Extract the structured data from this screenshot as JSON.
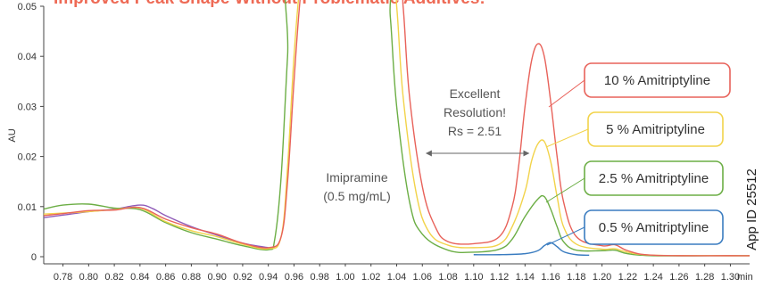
{
  "chart_data": {
    "type": "line",
    "title": "Improved Peak Shape Without Problematic Additives:",
    "xlabel": "min",
    "ylabel": "AU",
    "xlim": [
      0.765,
      1.315
    ],
    "ylim": [
      -0.0025,
      0.05
    ],
    "x_ticks": [
      0.78,
      0.8,
      0.82,
      0.84,
      0.86,
      0.88,
      0.9,
      0.92,
      0.94,
      0.96,
      0.98,
      1.0,
      1.02,
      1.04,
      1.06,
      1.08,
      1.1,
      1.12,
      1.14,
      1.16,
      1.18,
      1.2,
      1.22,
      1.24,
      1.26,
      1.28,
      1.3
    ],
    "x_tick_labels": [
      "0.78",
      "0.80",
      "0.82",
      "0.84",
      "0.86",
      "0.88",
      "0.90",
      "0.92",
      "0.94",
      "0.96",
      "0.98",
      "1.00",
      "1.02",
      "1.04",
      "1.06",
      "1.08",
      "1.10",
      "1.12",
      "1.14",
      "1.16",
      "1.18",
      "1.20",
      "1.22",
      "1.24",
      "1.26",
      "1.28",
      "1.30"
    ],
    "y_ticks": [
      0,
      0.01,
      0.02,
      0.03,
      0.04,
      0.05
    ],
    "y_tick_labels": [
      "0",
      "0.01",
      "0.02",
      "0.03",
      "0.04",
      "0.05"
    ],
    "grid": false,
    "series": [
      {
        "name": "10 % Amitriptyline",
        "color": "#e8625a",
        "x": [
          0.765,
          0.78,
          0.8,
          0.82,
          0.84,
          0.86,
          0.88,
          0.9,
          0.92,
          0.94,
          0.95,
          0.955,
          0.96,
          0.965,
          0.97,
          1.04,
          1.045,
          1.05,
          1.06,
          1.07,
          1.08,
          1.1,
          1.12,
          1.13,
          1.135,
          1.14,
          1.145,
          1.15,
          1.155,
          1.16,
          1.165,
          1.17,
          1.18,
          1.2,
          1.21,
          1.22,
          1.24,
          1.3,
          1.315
        ],
        "y": [
          0.0082,
          0.0086,
          0.0092,
          0.0093,
          0.0098,
          0.0075,
          0.0058,
          0.0045,
          0.0027,
          0.0018,
          0.004,
          0.015,
          0.035,
          0.052,
          0.06,
          0.06,
          0.05,
          0.032,
          0.014,
          0.006,
          0.003,
          0.0026,
          0.004,
          0.01,
          0.018,
          0.03,
          0.039,
          0.0425,
          0.04,
          0.031,
          0.02,
          0.011,
          0.004,
          0.0022,
          0.0024,
          0.0012,
          0.0003,
          0.0002,
          0.0002
        ]
      },
      {
        "name": "5 % Amitriptyline",
        "color": "#f2d34a",
        "x": [
          0.765,
          0.78,
          0.8,
          0.82,
          0.84,
          0.86,
          0.88,
          0.9,
          0.92,
          0.94,
          0.95,
          0.955,
          0.96,
          0.965,
          0.97,
          1.035,
          1.04,
          1.045,
          1.055,
          1.065,
          1.08,
          1.1,
          1.12,
          1.13,
          1.14,
          1.145,
          1.15,
          1.155,
          1.16,
          1.165,
          1.17,
          1.18,
          1.2,
          1.21,
          1.22,
          1.24,
          1.3,
          1.315
        ],
        "y": [
          0.0085,
          0.0087,
          0.009,
          0.0094,
          0.0097,
          0.007,
          0.0052,
          0.004,
          0.0025,
          0.0016,
          0.004,
          0.018,
          0.04,
          0.055,
          0.06,
          0.06,
          0.05,
          0.032,
          0.013,
          0.005,
          0.0023,
          0.0018,
          0.0025,
          0.006,
          0.013,
          0.019,
          0.0225,
          0.023,
          0.019,
          0.012,
          0.006,
          0.0025,
          0.0015,
          0.0016,
          0.0009,
          0.0003,
          0.0002,
          0.0002
        ]
      },
      {
        "name": "2.5 % Amitriptyline",
        "color": "#6cae45",
        "x": [
          0.765,
          0.78,
          0.8,
          0.82,
          0.84,
          0.86,
          0.88,
          0.9,
          0.92,
          0.94,
          0.945,
          0.95,
          0.955,
          0.96,
          1.03,
          1.035,
          1.04,
          1.05,
          1.06,
          1.08,
          1.1,
          1.12,
          1.13,
          1.14,
          1.15,
          1.155,
          1.16,
          1.165,
          1.17,
          1.18,
          1.2,
          1.21,
          1.22,
          1.24,
          1.3,
          1.315
        ],
        "y": [
          0.0095,
          0.0103,
          0.0105,
          0.0097,
          0.0094,
          0.0068,
          0.0048,
          0.0035,
          0.0022,
          0.0014,
          0.0035,
          0.016,
          0.04,
          0.06,
          0.06,
          0.048,
          0.03,
          0.011,
          0.0045,
          0.0013,
          0.0009,
          0.0015,
          0.0035,
          0.008,
          0.0115,
          0.012,
          0.0095,
          0.006,
          0.003,
          0.0013,
          0.0012,
          0.0013,
          0.0006,
          0.0002,
          0.0002,
          0.0002
        ]
      },
      {
        "name": "0.5 % Amitriptyline",
        "color": "#3a7cc0",
        "x": [
          1.1,
          1.12,
          1.14,
          1.15,
          1.155,
          1.16,
          1.165,
          1.17,
          1.18,
          1.19
        ],
        "y": [
          0.0004,
          0.0004,
          0.0006,
          0.0012,
          0.0022,
          0.0028,
          0.002,
          0.001,
          0.0004,
          0.0003
        ]
      },
      {
        "color": "#8f5bb8",
        "x": [
          0.765,
          0.78,
          0.8,
          0.82,
          0.84,
          0.85,
          0.86,
          0.88,
          0.9,
          0.92,
          0.94,
          0.945
        ],
        "y": [
          0.0078,
          0.0083,
          0.009,
          0.0095,
          0.0103,
          0.0096,
          0.0082,
          0.006,
          0.0043,
          0.0027,
          0.0018,
          0.0017
        ]
      }
    ],
    "annotations": {
      "resolution_lines": [
        "Excellent",
        "Resolution!",
        "Rs = 2.51"
      ],
      "arrow_x": [
        1.063,
        1.143
      ],
      "peak_lines": [
        "Imipramine",
        "(0.5 mg/mL)"
      ],
      "app_id": "App ID 25512"
    },
    "legend_placement": "right, stacked boxes"
  }
}
